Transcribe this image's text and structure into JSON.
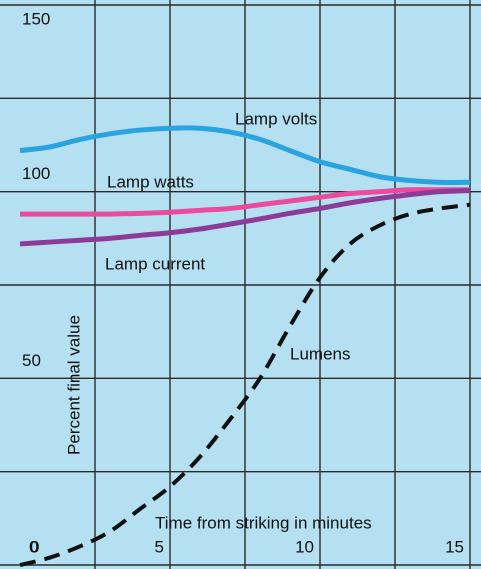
{
  "chart_data": {
    "type": "line",
    "xlabel": "Time from striking in minutes",
    "ylabel": "Percent final value",
    "x": [
      0,
      1,
      2,
      3,
      4,
      5,
      6,
      7,
      8,
      9,
      10,
      11,
      12,
      13,
      14,
      15
    ],
    "series": [
      {
        "name": "Lamp volts",
        "color": "#2aa4e0",
        "style": "solid",
        "values": [
          111,
          112,
          114,
          115.5,
          116.5,
          117,
          117,
          116,
          114,
          111,
          108,
          106,
          104,
          103,
          102.5,
          102.5
        ]
      },
      {
        "name": "Lamp watts",
        "color": "#ec4a9c",
        "style": "solid",
        "values": [
          94,
          94,
          94,
          94,
          94.2,
          94.5,
          95,
          95.5,
          96.5,
          97.5,
          98.5,
          99.5,
          100,
          100.5,
          100.5,
          100.5
        ]
      },
      {
        "name": "Lamp current",
        "color": "#8c3c98",
        "style": "solid",
        "values": [
          86,
          86.5,
          87,
          87.5,
          88.3,
          89,
          90,
          91.3,
          92.7,
          94.2,
          95.5,
          97,
          98.2,
          99.2,
          100,
          100.3
        ]
      },
      {
        "name": "Lumens",
        "color": "#111111",
        "style": "dashed",
        "values": [
          0,
          2,
          5,
          9,
          15,
          21,
          29,
          39,
          50,
          64,
          77,
          86,
          91,
          94,
          95.5,
          96.5
        ]
      }
    ],
    "xlim": [
      0,
      15
    ],
    "ylim": [
      0,
      150
    ],
    "xticks": [
      0,
      5,
      10,
      15
    ],
    "xminor": [
      2.5,
      7.5,
      12.5
    ],
    "yticks": [
      0,
      50,
      100,
      150
    ],
    "yminor": [
      25,
      75,
      125
    ],
    "grid": true
  }
}
